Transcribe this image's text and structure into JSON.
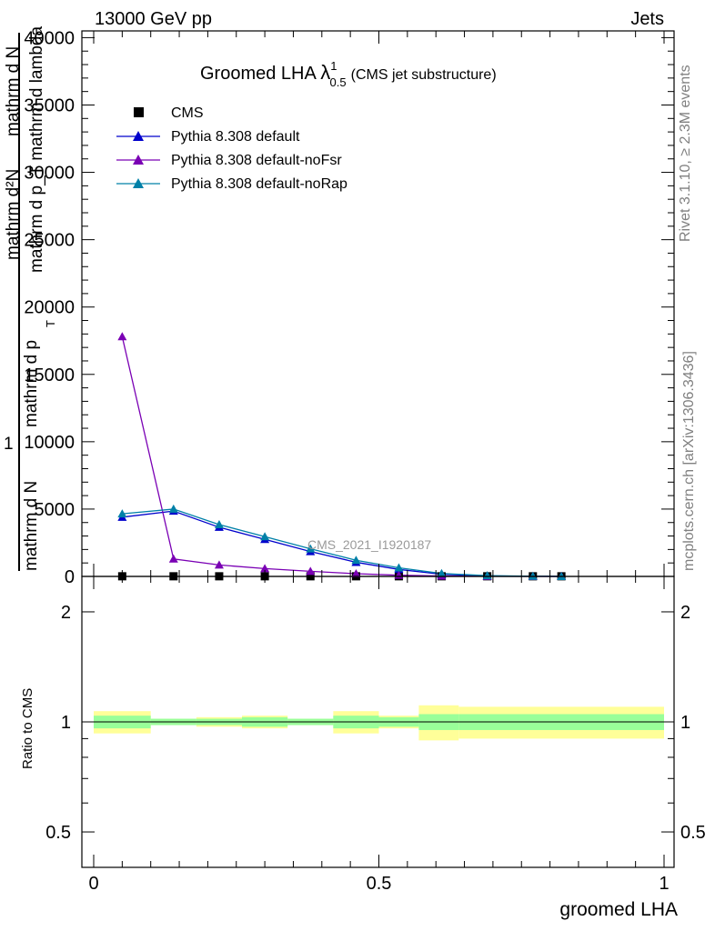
{
  "header": {
    "left": "13000 GeV pp",
    "right": "Jets"
  },
  "side_labels": {
    "top": "Rivet 3.1.10, ≥ 2.3M events",
    "bottom": "mcplots.cern.ch [arXiv:1306.3436]"
  },
  "plot_title": {
    "main": "Groomed LHA",
    "lambda": "λ",
    "sup": "1",
    "sub": "0.5",
    "note": "(CMS jet substructure)"
  },
  "watermark": "CMS_2021_I1920187",
  "y_label": {
    "frac_one": "1",
    "frac_den": "mathrm d N",
    "part2_num": "mathrm d p",
    "part2_sub": "T",
    "part2_den": "mathrm d p_T mathrm d lambda",
    "part3_num": "mathrm d²N",
    "part3_den": "mathrm d N"
  },
  "ratio_label": "Ratio to CMS",
  "x_label": "groomed LHA",
  "colors": {
    "default": "#0000cc",
    "noFsr": "#7a00b4",
    "noRap": "#0080a8",
    "band_outer": "#ffff99",
    "band_inner": "#99ff99"
  },
  "chart_data": [
    {
      "type": "line",
      "panel": "main",
      "x": [
        0.05,
        0.14,
        0.22,
        0.3,
        0.38,
        0.46,
        0.535,
        0.61,
        0.69,
        0.77,
        0.82
      ],
      "series": [
        {
          "name": "CMS",
          "marker": "square",
          "values": [
            10,
            10,
            10,
            10,
            10,
            10,
            10,
            10,
            10,
            10,
            10
          ]
        },
        {
          "name": "Pythia 8.308 default",
          "marker": "triangle",
          "values": [
            4400,
            4850,
            3650,
            2750,
            1850,
            1050,
            520,
            160,
            40,
            10,
            3
          ]
        },
        {
          "name": "Pythia 8.308 default-noFsr",
          "marker": "triangle",
          "values": [
            17800,
            1300,
            850,
            580,
            380,
            200,
            90,
            30,
            10,
            3,
            1
          ]
        },
        {
          "name": "Pythia 8.308 default-noRap",
          "marker": "triangle",
          "values": [
            4650,
            5000,
            3850,
            2950,
            2050,
            1200,
            640,
            220,
            60,
            15,
            4
          ]
        }
      ],
      "xlim": [
        -0.02,
        1.02
      ],
      "ylim": [
        0,
        40500
      ],
      "yticks": [
        0,
        5000,
        10000,
        15000,
        20000,
        25000,
        30000,
        35000,
        40000
      ],
      "ytick_labels": [
        "0",
        "5000",
        "10000",
        "15000",
        "20000",
        "25000",
        "30000",
        "35000",
        "40000"
      ],
      "legend_placement": "top-left"
    },
    {
      "type": "area",
      "panel": "ratio",
      "bin_edges": [
        0.0,
        0.1,
        0.18,
        0.26,
        0.34,
        0.42,
        0.5,
        0.57,
        0.64,
        1.0
      ],
      "inner_low": [
        0.96,
        0.98,
        0.98,
        0.97,
        0.98,
        0.96,
        0.97,
        0.95,
        0.95
      ],
      "inner_high": [
        1.04,
        1.02,
        1.02,
        1.03,
        1.02,
        1.04,
        1.03,
        1.05,
        1.05
      ],
      "outer_low": [
        0.93,
        0.98,
        0.97,
        0.96,
        0.98,
        0.93,
        0.96,
        0.89,
        0.9
      ],
      "outer_high": [
        1.07,
        1.02,
        1.03,
        1.04,
        1.02,
        1.07,
        1.04,
        1.11,
        1.1
      ],
      "ylim": [
        0.4,
        2.5
      ],
      "scale": "log",
      "yticks": [
        0.5,
        1,
        2
      ],
      "ytick_labels": [
        "0.5",
        "1",
        "2"
      ],
      "xticks": [
        0,
        0.5,
        1
      ],
      "xtick_labels": [
        "0",
        "0.5",
        "1"
      ]
    }
  ]
}
